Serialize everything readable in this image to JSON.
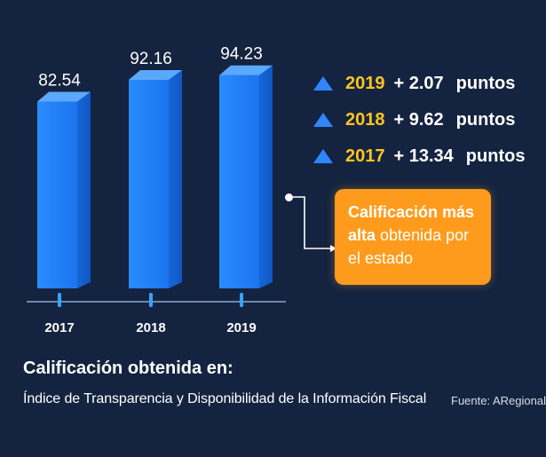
{
  "chart_data": {
    "type": "bar",
    "categories": [
      "2017",
      "2018",
      "2019"
    ],
    "values": [
      82.54,
      92.16,
      94.23
    ],
    "value_labels": [
      "82.54",
      "92.16",
      "94.23"
    ],
    "ylim": [
      0,
      100
    ],
    "grid": false,
    "bar_color": "#1f7bf0"
  },
  "legend": {
    "items": [
      {
        "year": "2019",
        "delta": "+ 2.07",
        "unit": "puntos"
      },
      {
        "year": "2018",
        "delta": "+ 9.62",
        "unit": "puntos"
      },
      {
        "year": "2017",
        "delta": "+ 13.34",
        "unit": "puntos"
      }
    ],
    "icon": "triangle-up-icon"
  },
  "callout": {
    "bold1": "Calificación más",
    "bold2": "alta",
    "rest": " obtenida por",
    "line3": "el estado"
  },
  "footer": {
    "title": "Calificación obtenida en:",
    "subtitle": "Índice de Transparencia y Disponibilidad de la Información Fiscal",
    "source": "Fuente: ARegional"
  },
  "colors": {
    "background": "#14233f",
    "accent_yellow": "#ffc51e",
    "callout_orange": "#ff9b1c",
    "triangle_blue": "#2f86ff"
  }
}
